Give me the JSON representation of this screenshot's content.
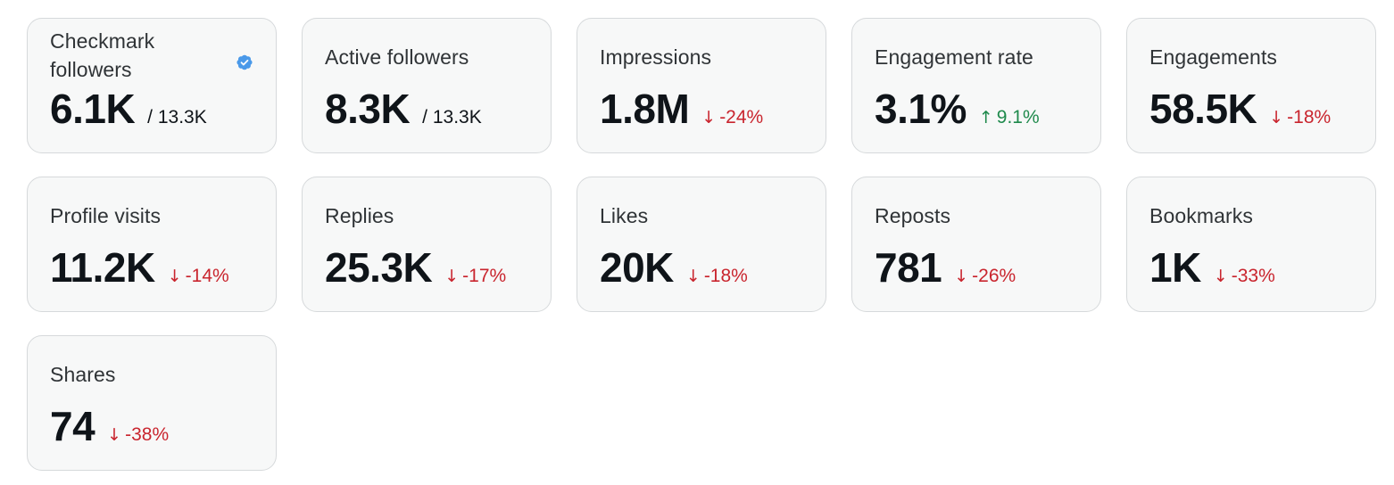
{
  "colors": {
    "card_bg": "#f7f8f8",
    "card_border": "#d6d9db",
    "negative": "#c9252e",
    "positive": "#1f8a4c",
    "verified_badge": "#4a99e9"
  },
  "cards": [
    {
      "label": "Checkmark\nfollowers",
      "value": "6.1K",
      "total": "/ 13.3K",
      "icon": "verified-badge-icon"
    },
    {
      "label": "Active followers",
      "value": "8.3K",
      "total": "/ 13.3K"
    },
    {
      "label": "Impressions",
      "value": "1.8M",
      "arrow": "↓",
      "delta": "-24%",
      "direction": "down"
    },
    {
      "label": "Engagement rate",
      "value": "3.1%",
      "arrow": "↑",
      "delta": "9.1%",
      "direction": "up"
    },
    {
      "label": "Engagements",
      "value": "58.5K",
      "arrow": "↓",
      "delta": "-18%",
      "direction": "down"
    },
    {
      "label": "Profile visits",
      "value": "11.2K",
      "arrow": "↓",
      "delta": "-14%",
      "direction": "down"
    },
    {
      "label": "Replies",
      "value": "25.3K",
      "arrow": "↓",
      "delta": "-17%",
      "direction": "down"
    },
    {
      "label": "Likes",
      "value": "20K",
      "arrow": "↓",
      "delta": "-18%",
      "direction": "down"
    },
    {
      "label": "Reposts",
      "value": "781",
      "arrow": "↓",
      "delta": "-26%",
      "direction": "down"
    },
    {
      "label": "Bookmarks",
      "value": "1K",
      "arrow": "↓",
      "delta": "-33%",
      "direction": "down"
    },
    {
      "label": "Shares",
      "value": "74",
      "arrow": "↓",
      "delta": "-38%",
      "direction": "down"
    }
  ]
}
